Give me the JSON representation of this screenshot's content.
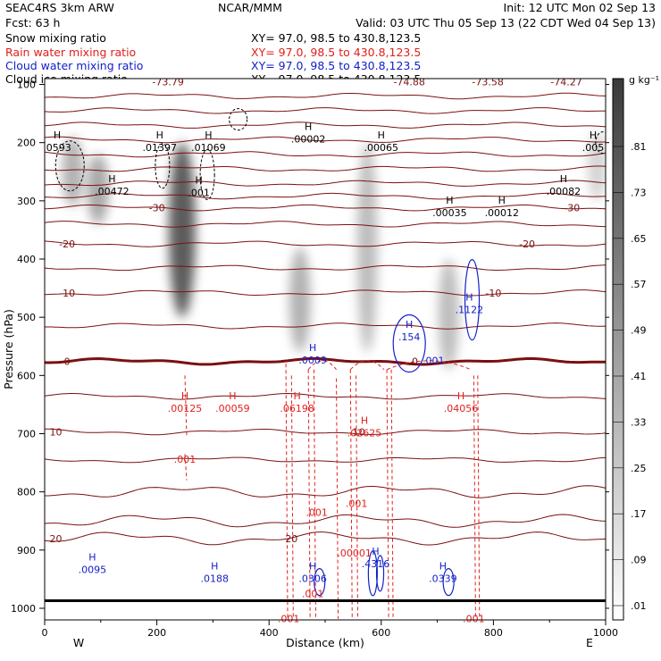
{
  "header": {
    "left1": "SEAC4RS  3km ARW",
    "left2": "Fcst:   63 h",
    "center": "NCAR/MMM",
    "init": "Init: 12 UTC Mon 02 Sep 13",
    "valid": "Valid: 03 UTC Thu 05 Sep 13 (22 CDT Wed 04 Sep 13)"
  },
  "legend": [
    {
      "name": "Snow mixing ratio",
      "xy": "XY=  97.0, 98.5 to 430.8,123.5",
      "color": "#000000"
    },
    {
      "name": "Rain water mixing ratio",
      "xy": "XY=  97.0, 98.5 to 430.8,123.5",
      "color": "#e0201c"
    },
    {
      "name": "Cloud water mixing ratio",
      "xy": "XY=  97.0, 98.5 to 430.8,123.5",
      "color": "#1420c8"
    },
    {
      "name": "Cloud ice mixing ratio",
      "xy": "XY=  97.0, 98.5 to 430.8,123.5",
      "color": "#000000"
    }
  ],
  "colorbar": {
    "unit": "g kg⁻¹",
    "labels": [
      ".81",
      ".73",
      ".65",
      ".57",
      ".49",
      ".41",
      ".33",
      ".25",
      ".17",
      ".09",
      ".01"
    ]
  },
  "chart_data": {
    "type": "heatmap",
    "title": "",
    "xlabel": "Distance (km)",
    "ylabel": "Pressure (hPa)",
    "xlim": [
      0,
      1000
    ],
    "ylim": [
      1020,
      90
    ],
    "x_ticks": [
      0,
      200,
      400,
      600,
      800,
      1000
    ],
    "y_ticks": [
      100,
      200,
      300,
      400,
      500,
      600,
      700,
      800,
      900,
      1000
    ],
    "x_end_labels": {
      "left": "W",
      "right": "E"
    },
    "grid": false,
    "temperature_isotherms": [
      {
        "label": "-30",
        "p": 312
      },
      {
        "label": "-20",
        "p": 374
      },
      {
        "label": "-10",
        "p": 458
      },
      {
        "label": "0",
        "p": 576
      },
      {
        "label": "10",
        "p": 697
      },
      {
        "label": "20",
        "p": 880
      }
    ],
    "top_temperature_labels": [
      {
        "label": "-73.79",
        "x": 220
      },
      {
        "label": "-74.88",
        "x": 650
      },
      {
        "label": "-73.58",
        "x": 790
      },
      {
        "label": "-74.27",
        "x": 930
      }
    ],
    "snow_maxima": [
      {
        "label": ".0593",
        "x": 0,
        "p": 210
      },
      {
        "label": ".01397",
        "x": 205,
        "p": 210
      },
      {
        "label": ".01069",
        "x": 292,
        "p": 210
      },
      {
        "label": ".00002",
        "x": 470,
        "p": 195
      },
      {
        "label": ".00065",
        "x": 600,
        "p": 210
      },
      {
        "label": ".005",
        "x": 990,
        "p": 210
      },
      {
        "label": ".00472",
        "x": 120,
        "p": 285
      },
      {
        "label": ".001",
        "x": 275,
        "p": 287
      },
      {
        "label": ".00035",
        "x": 722,
        "p": 322
      },
      {
        "label": ".00012",
        "x": 815,
        "p": 322
      },
      {
        "label": ".00082",
        "x": 925,
        "p": 285
      }
    ],
    "rain_maxima": [
      {
        "label": ".00125",
        "x": 250,
        "p": 658
      },
      {
        "label": ".00059",
        "x": 335,
        "p": 658
      },
      {
        "label": ".06198",
        "x": 450,
        "p": 658
      },
      {
        "label": ".02625",
        "x": 570,
        "p": 700
      },
      {
        "label": ".04056",
        "x": 742,
        "p": 658
      },
      {
        "label": ".001",
        "x": 250,
        "p": 744
      },
      {
        "label": ".001",
        "x": 556,
        "p": 820
      },
      {
        "label": ".001",
        "x": 485,
        "p": 835
      },
      {
        "label": ".00001",
        "x": 552,
        "p": 905
      },
      {
        "label": ".001",
        "x": 478,
        "p": 975
      },
      {
        "label": ".001",
        "x": 435,
        "p": 1018
      },
      {
        "label": ".001",
        "x": 765,
        "p": 1018
      }
    ],
    "cloud_water_maxima": [
      {
        "label": ".0009",
        "x": 478,
        "p": 575
      },
      {
        "label": ".154",
        "x": 650,
        "p": 535
      },
      {
        "label": ".1122",
        "x": 757,
        "p": 488
      },
      {
        "label": ".001",
        "x": 693,
        "p": 574
      },
      {
        "label": ".0095",
        "x": 85,
        "p": 935
      },
      {
        "label": ".0188",
        "x": 303,
        "p": 950
      },
      {
        "label": ".0306",
        "x": 478,
        "p": 950
      },
      {
        "label": ".4316",
        "x": 590,
        "p": 925
      },
      {
        "label": ".0339",
        "x": 710,
        "p": 950
      }
    ],
    "snow_plumes": [
      {
        "x": 50,
        "p_top": 190,
        "p_bot": 310,
        "intensity": 0.35
      },
      {
        "x": 95,
        "p_top": 220,
        "p_bot": 340,
        "intensity": 0.4
      },
      {
        "x": 245,
        "p_top": 200,
        "p_bot": 500,
        "intensity": 0.75
      },
      {
        "x": 455,
        "p_top": 380,
        "p_bot": 560,
        "intensity": 0.35
      },
      {
        "x": 575,
        "p_top": 200,
        "p_bot": 560,
        "intensity": 0.3
      },
      {
        "x": 720,
        "p_top": 400,
        "p_bot": 590,
        "intensity": 0.3
      },
      {
        "x": 985,
        "p_top": 180,
        "p_bot": 300,
        "intensity": 0.2
      }
    ]
  }
}
